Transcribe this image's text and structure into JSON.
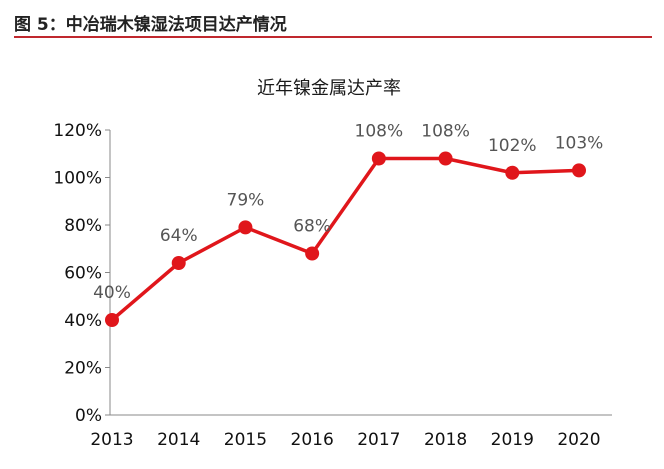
{
  "figure": {
    "caption": "图 5：中冶瑞木镍湿法项目达产情况"
  },
  "colors": {
    "accent": "#c0282e",
    "series": "#e0161b",
    "axis": "#888888"
  },
  "chart_data": {
    "type": "line",
    "title": "近年镍金属达产率",
    "categories": [
      "2013",
      "2014",
      "2015",
      "2016",
      "2017",
      "2018",
      "2019",
      "2020"
    ],
    "values": [
      40,
      64,
      79,
      68,
      108,
      108,
      102,
      103
    ],
    "data_labels": [
      "40%",
      "64%",
      "79%",
      "68%",
      "108%",
      "108%",
      "102%",
      "103%"
    ],
    "ylim": [
      0,
      120
    ],
    "yticks": [
      0,
      20,
      40,
      60,
      80,
      100,
      120
    ],
    "ytick_labels": [
      "0%",
      "20%",
      "40%",
      "60%",
      "80%",
      "100%",
      "120%"
    ],
    "xlabel": "",
    "ylabel": "",
    "grid": false,
    "legend": "none"
  }
}
